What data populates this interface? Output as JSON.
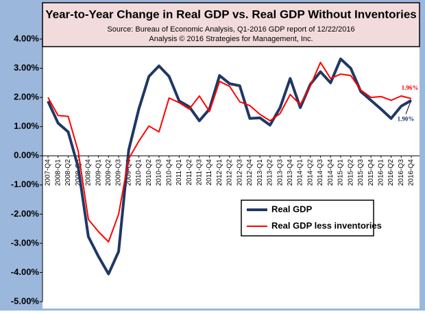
{
  "chart_data": {
    "type": "line",
    "title": "Year-to-Year Change in Real GDP vs. Real GDP Without Inventories",
    "subtitle": [
      "Source: Bureau of Economic Analysis, Q1-2016 GDP report of 12/22/2016",
      "Analysis © 2016 Strategies for Management, Inc."
    ],
    "categories": [
      "2007-Q4",
      "2008-Q1",
      "2008-Q2",
      "2008-Q3",
      "2008-Q4",
      "2009-Q1",
      "2009-Q2",
      "2009-Q3",
      "2009-Q4",
      "2010-Q1",
      "2010-Q2",
      "2010-Q3",
      "2010-Q4",
      "2011-Q1",
      "2011-Q2",
      "2011-Q3",
      "2011-Q4",
      "2012-Q1",
      "2012-Q2",
      "2012-Q3",
      "2012-Q4",
      "2013-Q1",
      "2013-Q2",
      "2013-Q3",
      "2013-Q4",
      "2014-Q1",
      "2014-Q2",
      "2014-Q3",
      "2014-Q4",
      "2015-Q1",
      "2015-Q2",
      "2015-Q3",
      "2015-Q4",
      "2016-Q1",
      "2016-Q2",
      "2016-Q3",
      "2016-Q4"
    ],
    "series": [
      {
        "name": "Real GDP",
        "color": "#1f3864",
        "width": 4,
        "values": [
          1.87,
          1.12,
          0.82,
          -0.4,
          -2.77,
          -3.45,
          -4.05,
          -3.28,
          0.2,
          1.6,
          2.72,
          3.08,
          2.72,
          1.88,
          1.68,
          1.2,
          1.6,
          2.75,
          2.47,
          2.4,
          1.28,
          1.3,
          1.05,
          1.65,
          2.65,
          1.65,
          2.45,
          2.88,
          2.5,
          3.32,
          3.0,
          2.2,
          1.9,
          1.6,
          1.28,
          1.7,
          1.9
        ]
      },
      {
        "name": "Real GDP less inventories",
        "color": "#ff0000",
        "width": 2,
        "values": [
          2.0,
          1.38,
          1.35,
          0.15,
          -2.18,
          -2.6,
          -2.95,
          -2.0,
          -0.1,
          0.5,
          1.02,
          0.82,
          1.98,
          1.82,
          1.6,
          2.05,
          1.52,
          2.55,
          2.38,
          1.85,
          1.72,
          1.42,
          1.2,
          1.45,
          2.1,
          1.75,
          2.4,
          3.2,
          2.65,
          2.8,
          2.75,
          2.25,
          2.0,
          2.03,
          1.9,
          2.05,
          1.96
        ]
      }
    ],
    "annotations": [
      {
        "text": "1.96%",
        "color": "#ff0000"
      },
      {
        "text": "1.90%",
        "color": "#1f3864"
      }
    ],
    "ylim": [
      -5,
      4
    ],
    "yticks": [
      {
        "value": 4,
        "label": "4.00%"
      },
      {
        "value": 3,
        "label": "3.00%"
      },
      {
        "value": 2,
        "label": "2.00%"
      },
      {
        "value": 1,
        "label": "1.00%"
      },
      {
        "value": 0,
        "label": "0.00%"
      },
      {
        "value": -1,
        "label": "-1.00%"
      },
      {
        "value": -2,
        "label": "-2.00%"
      },
      {
        "value": -3,
        "label": "-3.00%"
      },
      {
        "value": -4,
        "label": "-4.00%"
      },
      {
        "value": -5,
        "label": "-5.00%"
      }
    ],
    "grid": false,
    "legend": "lower-right"
  }
}
